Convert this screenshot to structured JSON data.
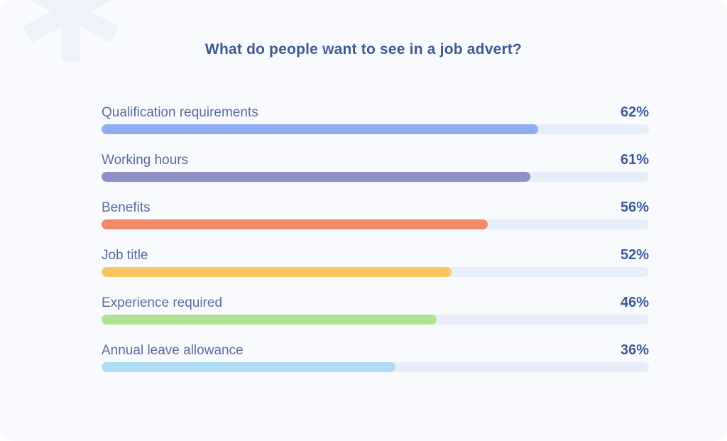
{
  "title": "What do people want to see in a job advert?",
  "chart_data": {
    "type": "bar",
    "orientation": "horizontal",
    "title": "What do people want to see in a job advert?",
    "unit": "%",
    "categories": [
      "Qualification requirements",
      "Working hours",
      "Benefits",
      "Job title",
      "Experience required",
      "Annual leave allowance"
    ],
    "values": [
      62,
      61,
      56,
      52,
      46,
      36
    ],
    "value_labels": [
      "62%",
      "61%",
      "56%",
      "52%",
      "46%",
      "36%"
    ],
    "xlim": [
      0,
      100
    ],
    "grid": false,
    "legend": false,
    "rows": [
      {
        "label": "Qualification requirements",
        "value": 62,
        "value_label": "62%",
        "bar_color": "#90acf2",
        "bar_width": "79.8%"
      },
      {
        "label": "Working hours",
        "value": 61,
        "value_label": "61%",
        "bar_color": "#918fc7",
        "bar_width": "78.3%"
      },
      {
        "label": "Benefits",
        "value": 56,
        "value_label": "56%",
        "bar_color": "#f08a68",
        "bar_width": "70.6%"
      },
      {
        "label": "Job title",
        "value": 52,
        "value_label": "52%",
        "bar_color": "#fac460",
        "bar_width": "64.0%"
      },
      {
        "label": "Experience required",
        "value": 46,
        "value_label": "46%",
        "bar_color": "#afe292",
        "bar_width": "61.2%"
      },
      {
        "label": "Annual leave allowance",
        "value": 36,
        "value_label": "36%",
        "bar_color": "#aedcf6",
        "bar_width": "53.7%"
      }
    ]
  },
  "colors": {
    "card_background": "#f8fafd",
    "title_text": "#3d5a96",
    "label_text": "#5a6c9e",
    "value_text": "#3d5a96",
    "track": "#e8eef9",
    "decoration": "#edf2fb"
  },
  "icons": {
    "decoration": "asterisk-logo-icon"
  }
}
